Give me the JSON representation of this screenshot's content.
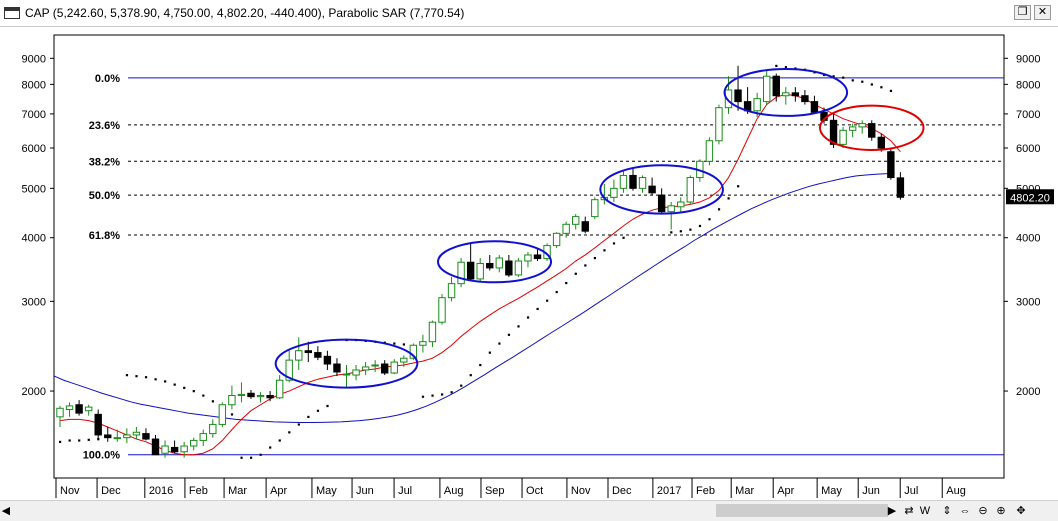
{
  "window": {
    "title": "CAP (5,242.60, 5,378.90, 4,750.00, 4,802.20, -440.400), Parabolic SAR (7,770.54)",
    "restore_icon": "restore-icon",
    "close_icon": "close-icon"
  },
  "chart_data": {
    "type": "candlestick",
    "scale": "log",
    "ylim": [
      1350,
      10000
    ],
    "y_ticks": [
      2000,
      3000,
      4000,
      5000,
      6000,
      7000,
      8000,
      9000
    ],
    "x_ticks": [
      "Nov",
      "Dec",
      "2016",
      "Feb",
      "Mar",
      "Apr",
      "May",
      "Jun",
      "Jul",
      "Aug",
      "Sep",
      "Oct",
      "Nov",
      "Dec",
      "2017",
      "Feb",
      "Mar",
      "Apr",
      "May",
      "Jun",
      "Jul",
      "Aug"
    ],
    "last_price_label": "4802.20",
    "fib_levels": [
      {
        "label": "0.0%",
        "value": 8240
      },
      {
        "label": "23.6%",
        "value": 6660
      },
      {
        "label": "38.2%",
        "value": 5650
      },
      {
        "label": "50.0%",
        "value": 4850
      },
      {
        "label": "61.8%",
        "value": 4050
      },
      {
        "label": "100.0%",
        "value": 1500
      }
    ],
    "candles": [
      {
        "o": 1780,
        "h": 1870,
        "l": 1700,
        "c": 1850
      },
      {
        "o": 1840,
        "h": 1900,
        "l": 1780,
        "c": 1870
      },
      {
        "o": 1880,
        "h": 1920,
        "l": 1790,
        "c": 1810
      },
      {
        "o": 1830,
        "h": 1880,
        "l": 1790,
        "c": 1860
      },
      {
        "o": 1800,
        "h": 1840,
        "l": 1600,
        "c": 1640
      },
      {
        "o": 1640,
        "h": 1700,
        "l": 1590,
        "c": 1620
      },
      {
        "o": 1620,
        "h": 1680,
        "l": 1590,
        "c": 1620
      },
      {
        "o": 1620,
        "h": 1690,
        "l": 1580,
        "c": 1640
      },
      {
        "o": 1640,
        "h": 1700,
        "l": 1610,
        "c": 1660
      },
      {
        "o": 1650,
        "h": 1690,
        "l": 1600,
        "c": 1610
      },
      {
        "o": 1610,
        "h": 1640,
        "l": 1500,
        "c": 1500
      },
      {
        "o": 1510,
        "h": 1600,
        "l": 1480,
        "c": 1560
      },
      {
        "o": 1550,
        "h": 1600,
        "l": 1510,
        "c": 1520
      },
      {
        "o": 1520,
        "h": 1590,
        "l": 1480,
        "c": 1560
      },
      {
        "o": 1560,
        "h": 1620,
        "l": 1530,
        "c": 1600
      },
      {
        "o": 1600,
        "h": 1680,
        "l": 1560,
        "c": 1650
      },
      {
        "o": 1650,
        "h": 1760,
        "l": 1620,
        "c": 1720
      },
      {
        "o": 1720,
        "h": 1900,
        "l": 1700,
        "c": 1880
      },
      {
        "o": 1880,
        "h": 2050,
        "l": 1840,
        "c": 1960
      },
      {
        "o": 1960,
        "h": 2080,
        "l": 1900,
        "c": 1970
      },
      {
        "o": 1980,
        "h": 2010,
        "l": 1930,
        "c": 1950
      },
      {
        "o": 1950,
        "h": 1990,
        "l": 1900,
        "c": 1960
      },
      {
        "o": 1960,
        "h": 2000,
        "l": 1910,
        "c": 1940
      },
      {
        "o": 1940,
        "h": 2150,
        "l": 1930,
        "c": 2100
      },
      {
        "o": 2100,
        "h": 2400,
        "l": 2080,
        "c": 2300
      },
      {
        "o": 2300,
        "h": 2550,
        "l": 2200,
        "c": 2400
      },
      {
        "o": 2400,
        "h": 2500,
        "l": 2280,
        "c": 2380
      },
      {
        "o": 2380,
        "h": 2450,
        "l": 2300,
        "c": 2330
      },
      {
        "o": 2340,
        "h": 2400,
        "l": 2200,
        "c": 2260
      },
      {
        "o": 2260,
        "h": 2320,
        "l": 2140,
        "c": 2180
      },
      {
        "o": 2150,
        "h": 2250,
        "l": 2030,
        "c": 2160
      },
      {
        "o": 2150,
        "h": 2250,
        "l": 2100,
        "c": 2200
      },
      {
        "o": 2200,
        "h": 2280,
        "l": 2150,
        "c": 2230
      },
      {
        "o": 2240,
        "h": 2300,
        "l": 2180,
        "c": 2250
      },
      {
        "o": 2260,
        "h": 2300,
        "l": 2150,
        "c": 2170
      },
      {
        "o": 2170,
        "h": 2310,
        "l": 2160,
        "c": 2280
      },
      {
        "o": 2280,
        "h": 2350,
        "l": 2230,
        "c": 2320
      },
      {
        "o": 2320,
        "h": 2480,
        "l": 2300,
        "c": 2460
      },
      {
        "o": 2460,
        "h": 2580,
        "l": 2380,
        "c": 2500
      },
      {
        "o": 2500,
        "h": 2750,
        "l": 2440,
        "c": 2730
      },
      {
        "o": 2730,
        "h": 3100,
        "l": 2700,
        "c": 3050
      },
      {
        "o": 3050,
        "h": 3350,
        "l": 3000,
        "c": 3250
      },
      {
        "o": 3250,
        "h": 3650,
        "l": 3200,
        "c": 3580
      },
      {
        "o": 3580,
        "h": 3900,
        "l": 3300,
        "c": 3320
      },
      {
        "o": 3320,
        "h": 3650,
        "l": 3280,
        "c": 3560
      },
      {
        "o": 3560,
        "h": 3700,
        "l": 3450,
        "c": 3490
      },
      {
        "o": 3490,
        "h": 3700,
        "l": 3420,
        "c": 3650
      },
      {
        "o": 3600,
        "h": 3700,
        "l": 3350,
        "c": 3380
      },
      {
        "o": 3380,
        "h": 3650,
        "l": 3350,
        "c": 3600
      },
      {
        "o": 3600,
        "h": 3750,
        "l": 3500,
        "c": 3700
      },
      {
        "o": 3700,
        "h": 3800,
        "l": 3600,
        "c": 3640
      },
      {
        "o": 3640,
        "h": 3900,
        "l": 3600,
        "c": 3860
      },
      {
        "o": 3860,
        "h": 4100,
        "l": 3820,
        "c": 4080
      },
      {
        "o": 4080,
        "h": 4300,
        "l": 4000,
        "c": 4250
      },
      {
        "o": 4250,
        "h": 4450,
        "l": 4150,
        "c": 4400
      },
      {
        "o": 4300,
        "h": 4400,
        "l": 4080,
        "c": 4120
      },
      {
        "o": 4400,
        "h": 4800,
        "l": 4350,
        "c": 4750
      },
      {
        "o": 4750,
        "h": 5100,
        "l": 4650,
        "c": 4800
      },
      {
        "o": 4800,
        "h": 5200,
        "l": 4700,
        "c": 5000
      },
      {
        "o": 5000,
        "h": 5400,
        "l": 4900,
        "c": 5300
      },
      {
        "o": 5300,
        "h": 5500,
        "l": 4950,
        "c": 5000
      },
      {
        "o": 5000,
        "h": 5300,
        "l": 4900,
        "c": 5250
      },
      {
        "o": 5050,
        "h": 5250,
        "l": 4850,
        "c": 4900
      },
      {
        "o": 4850,
        "h": 5000,
        "l": 4450,
        "c": 4500
      },
      {
        "o": 4500,
        "h": 4700,
        "l": 4150,
        "c": 4620
      },
      {
        "o": 4600,
        "h": 4800,
        "l": 4500,
        "c": 4700
      },
      {
        "o": 4700,
        "h": 5300,
        "l": 4650,
        "c": 5250
      },
      {
        "o": 5250,
        "h": 5700,
        "l": 5150,
        "c": 5650
      },
      {
        "o": 5650,
        "h": 6300,
        "l": 5550,
        "c": 6200
      },
      {
        "o": 6200,
        "h": 7300,
        "l": 6100,
        "c": 7200
      },
      {
        "o": 7200,
        "h": 8300,
        "l": 7000,
        "c": 7800
      },
      {
        "o": 7800,
        "h": 8700,
        "l": 7100,
        "c": 7400
      },
      {
        "o": 7400,
        "h": 7900,
        "l": 7000,
        "c": 7100
      },
      {
        "o": 7100,
        "h": 7700,
        "l": 6900,
        "c": 7500
      },
      {
        "o": 7400,
        "h": 8500,
        "l": 7300,
        "c": 8300
      },
      {
        "o": 8300,
        "h": 8400,
        "l": 7400,
        "c": 7600
      },
      {
        "o": 7600,
        "h": 7900,
        "l": 7300,
        "c": 7700
      },
      {
        "o": 7700,
        "h": 7900,
        "l": 7400,
        "c": 7600
      },
      {
        "o": 7600,
        "h": 7800,
        "l": 7300,
        "c": 7400
      },
      {
        "o": 7400,
        "h": 7600,
        "l": 7000,
        "c": 7050
      },
      {
        "o": 7050,
        "h": 7200,
        "l": 6700,
        "c": 6800
      },
      {
        "o": 6800,
        "h": 7000,
        "l": 6000,
        "c": 6100
      },
      {
        "o": 6100,
        "h": 6600,
        "l": 6000,
        "c": 6500
      },
      {
        "o": 6500,
        "h": 6700,
        "l": 6300,
        "c": 6600
      },
      {
        "o": 6600,
        "h": 6800,
        "l": 6400,
        "c": 6700
      },
      {
        "o": 6700,
        "h": 6800,
        "l": 6200,
        "c": 6300
      },
      {
        "o": 6300,
        "h": 6400,
        "l": 5900,
        "c": 6000
      },
      {
        "o": 5900,
        "h": 6000,
        "l": 5200,
        "c": 5250
      },
      {
        "o": 5242.6,
        "h": 5378.9,
        "l": 4750,
        "c": 4802.2
      }
    ],
    "sma_red": [
      1750,
      1760,
      1760,
      1750,
      1730,
      1700,
      1670,
      1640,
      1610,
      1590,
      1560,
      1530,
      1510,
      1500,
      1500,
      1510,
      1540,
      1600,
      1680,
      1760,
      1830,
      1880,
      1930,
      1970,
      2000,
      2040,
      2080,
      2110,
      2130,
      2150,
      2160,
      2180,
      2200,
      2210,
      2230,
      2240,
      2250,
      2270,
      2290,
      2320,
      2380,
      2460,
      2560,
      2650,
      2740,
      2820,
      2900,
      2970,
      3040,
      3120,
      3200,
      3290,
      3380,
      3480,
      3600,
      3700,
      3820,
      3950,
      4080,
      4220,
      4350,
      4450,
      4530,
      4580,
      4600,
      4620,
      4650,
      4700,
      4790,
      4950,
      5250,
      5700,
      6250,
      6850,
      7300,
      7550,
      7650,
      7600,
      7500,
      7300,
      7150,
      7000,
      6850,
      6750,
      6650,
      6550,
      6400,
      6200,
      5900
    ],
    "sma_blue": [
      2140,
      2100,
      2070,
      2040,
      2010,
      1980,
      1955,
      1930,
      1905,
      1885,
      1870,
      1855,
      1840,
      1825,
      1810,
      1800,
      1790,
      1780,
      1770,
      1760,
      1755,
      1750,
      1745,
      1740,
      1738,
      1736,
      1735,
      1735,
      1736,
      1738,
      1740,
      1745,
      1750,
      1758,
      1768,
      1780,
      1795,
      1815,
      1840,
      1870,
      1905,
      1945,
      1990,
      2040,
      2095,
      2150,
      2210,
      2270,
      2330,
      2395,
      2460,
      2530,
      2600,
      2670,
      2745,
      2820,
      2900,
      2985,
      3070,
      3160,
      3250,
      3345,
      3440,
      3540,
      3640,
      3740,
      3840,
      3950,
      4050,
      4160,
      4260,
      4360,
      4460,
      4560,
      4650,
      4740,
      4820,
      4900,
      4970,
      5040,
      5100,
      5150,
      5200,
      5250,
      5290,
      5310,
      5330,
      5340,
      5350
    ],
    "sar_points": [
      {
        "i": 0,
        "v": 1590
      },
      {
        "i": 1,
        "v": 1600
      },
      {
        "i": 2,
        "v": 1600
      },
      {
        "i": 3,
        "v": 1605
      },
      {
        "i": 4,
        "v": 1610
      },
      {
        "i": 7,
        "v": 2150
      },
      {
        "i": 8,
        "v": 2140
      },
      {
        "i": 9,
        "v": 2130
      },
      {
        "i": 10,
        "v": 2110
      },
      {
        "i": 11,
        "v": 2090
      },
      {
        "i": 12,
        "v": 2060
      },
      {
        "i": 13,
        "v": 2030
      },
      {
        "i": 14,
        "v": 2000
      },
      {
        "i": 15,
        "v": 1960
      },
      {
        "i": 16,
        "v": 1910
      },
      {
        "i": 17,
        "v": 1860
      },
      {
        "i": 18,
        "v": 1800
      },
      {
        "i": 19,
        "v": 1480
      },
      {
        "i": 20,
        "v": 1480
      },
      {
        "i": 21,
        "v": 1500
      },
      {
        "i": 22,
        "v": 1550
      },
      {
        "i": 23,
        "v": 1600
      },
      {
        "i": 24,
        "v": 1660
      },
      {
        "i": 25,
        "v": 1720
      },
      {
        "i": 26,
        "v": 1780
      },
      {
        "i": 27,
        "v": 1830
      },
      {
        "i": 28,
        "v": 1870
      },
      {
        "i": 30,
        "v": 2520
      },
      {
        "i": 31,
        "v": 2520
      },
      {
        "i": 32,
        "v": 2510
      },
      {
        "i": 33,
        "v": 2500
      },
      {
        "i": 34,
        "v": 2490
      },
      {
        "i": 35,
        "v": 2480
      },
      {
        "i": 36,
        "v": 2470
      },
      {
        "i": 37,
        "v": 2450
      },
      {
        "i": 38,
        "v": 1950
      },
      {
        "i": 39,
        "v": 1960
      },
      {
        "i": 40,
        "v": 1970
      },
      {
        "i": 41,
        "v": 1990
      },
      {
        "i": 42,
        "v": 2050
      },
      {
        "i": 43,
        "v": 2150
      },
      {
        "i": 44,
        "v": 2250
      },
      {
        "i": 45,
        "v": 2380
      },
      {
        "i": 46,
        "v": 2480
      },
      {
        "i": 47,
        "v": 2580
      },
      {
        "i": 48,
        "v": 2680
      },
      {
        "i": 49,
        "v": 2790
      },
      {
        "i": 50,
        "v": 2900
      },
      {
        "i": 51,
        "v": 3010
      },
      {
        "i": 52,
        "v": 3130
      },
      {
        "i": 53,
        "v": 3260
      },
      {
        "i": 54,
        "v": 3400
      },
      {
        "i": 55,
        "v": 3530
      },
      {
        "i": 56,
        "v": 3650
      },
      {
        "i": 57,
        "v": 3780
      },
      {
        "i": 58,
        "v": 3900
      },
      {
        "i": 59,
        "v": 4000
      },
      {
        "i": 64,
        "v": 4100
      },
      {
        "i": 65,
        "v": 4120
      },
      {
        "i": 66,
        "v": 4150
      },
      {
        "i": 67,
        "v": 4220
      },
      {
        "i": 68,
        "v": 4350
      },
      {
        "i": 69,
        "v": 4550
      },
      {
        "i": 70,
        "v": 4780
      },
      {
        "i": 71,
        "v": 5050
      },
      {
        "i": 75,
        "v": 8700
      },
      {
        "i": 76,
        "v": 8650
      },
      {
        "i": 77,
        "v": 8600
      },
      {
        "i": 78,
        "v": 8550
      },
      {
        "i": 79,
        "v": 8450
      },
      {
        "i": 80,
        "v": 8350
      },
      {
        "i": 81,
        "v": 8300
      },
      {
        "i": 82,
        "v": 8250
      },
      {
        "i": 83,
        "v": 8150
      },
      {
        "i": 84,
        "v": 8100
      },
      {
        "i": 85,
        "v": 8000
      },
      {
        "i": 86,
        "v": 7900
      },
      {
        "i": 87,
        "v": 7770
      }
    ],
    "highlight_ellipses": [
      {
        "from": 23,
        "to": 37,
        "lo": 2050,
        "hi": 2500,
        "color": "#1010d0"
      },
      {
        "from": 40,
        "to": 51,
        "lo": 3300,
        "hi": 3900,
        "color": "#1010d0"
      },
      {
        "from": 57,
        "to": 69,
        "lo": 4500,
        "hi": 5500,
        "color": "#1010d0"
      },
      {
        "from": 70,
        "to": 82,
        "lo": 7000,
        "hi": 8500,
        "color": "#1010d0"
      },
      {
        "from": 80,
        "to": 90,
        "lo": 6000,
        "hi": 7200,
        "color": "#e00000"
      }
    ],
    "colors": {
      "up": "#1a8c1a",
      "down": "#000000",
      "sma_red": "#e00000",
      "sma_blue": "#1010c0",
      "fib": "#1010c0",
      "grid": "#000000",
      "sar": "#000000"
    }
  },
  "scrollbar": {
    "left_arrow": "◀",
    "right_arrow": "▶",
    "buttons": [
      "⇄",
      "W",
      "⇕",
      "⇔",
      "⊖",
      "⊕",
      "✥"
    ]
  }
}
